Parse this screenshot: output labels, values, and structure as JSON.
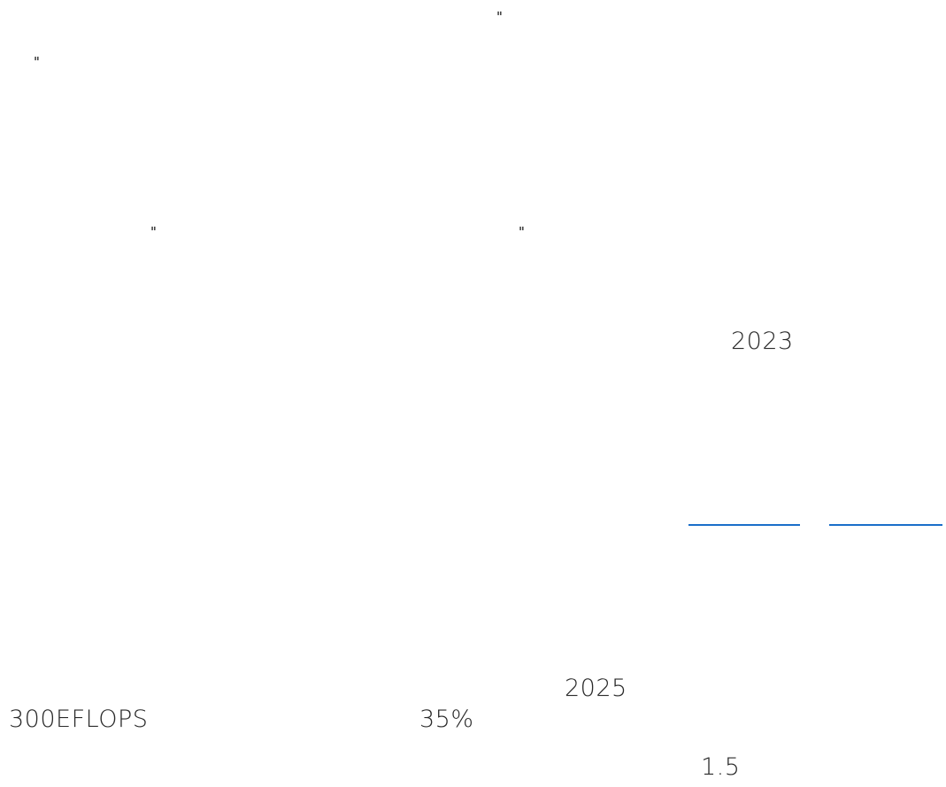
{
  "fragments": {
    "quote_1": "\"",
    "quote_2": "\"",
    "quote_3": "\"",
    "quote_4": "\"",
    "year_2023": "2023",
    "year_2025": "2025",
    "compute": "300EFLOPS",
    "percent": "35%",
    "factor": "1.5"
  },
  "colors": {
    "text": "#222222",
    "link": "#1a6fc9"
  }
}
